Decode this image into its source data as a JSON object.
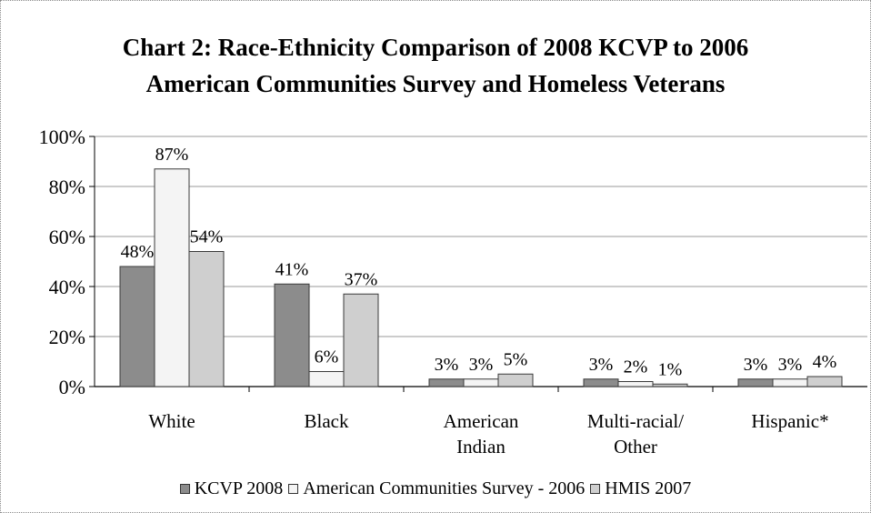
{
  "chart_data": {
    "type": "bar",
    "title": "Chart 2: Race-Ethnicity Comparison of 2008 KCVP to 2006 American Communities Survey and Homeless Veterans",
    "title_lines": [
      "Chart 2: Race-Ethnicity Comparison of 2008 KCVP to 2006",
      "American Communities Survey and Homeless Veterans"
    ],
    "categories": [
      "White",
      "Black",
      "American Indian",
      "Multi-racial/ Other",
      "Hispanic*"
    ],
    "category_lines": [
      [
        "White"
      ],
      [
        "Black"
      ],
      [
        "American",
        "Indian"
      ],
      [
        "Multi-racial/",
        "Other"
      ],
      [
        "Hispanic*"
      ]
    ],
    "series": [
      {
        "name": "KCVP 2008",
        "values": [
          48,
          41,
          3,
          3,
          3
        ],
        "labels": [
          "48%",
          "41%",
          "3%",
          "3%",
          "3%"
        ],
        "color": "#8c8c8c"
      },
      {
        "name": "American Communities Survey - 2006",
        "values": [
          87,
          6,
          3,
          2,
          3
        ],
        "labels": [
          "87%",
          "6%",
          "3%",
          "2%",
          "3%"
        ],
        "color": "#f4f4f4"
      },
      {
        "name": "HMIS 2007",
        "values": [
          54,
          37,
          5,
          1,
          4
        ],
        "labels": [
          "54%",
          "37%",
          "5%",
          "1%",
          "4%"
        ],
        "color": "#cfcfcf"
      }
    ],
    "yticks": [
      "0%",
      "20%",
      "40%",
      "60%",
      "80%",
      "100%"
    ],
    "ylim": [
      0,
      100
    ],
    "xlabel": "",
    "ylabel": "",
    "grid": true,
    "legend_position": "bottom"
  }
}
